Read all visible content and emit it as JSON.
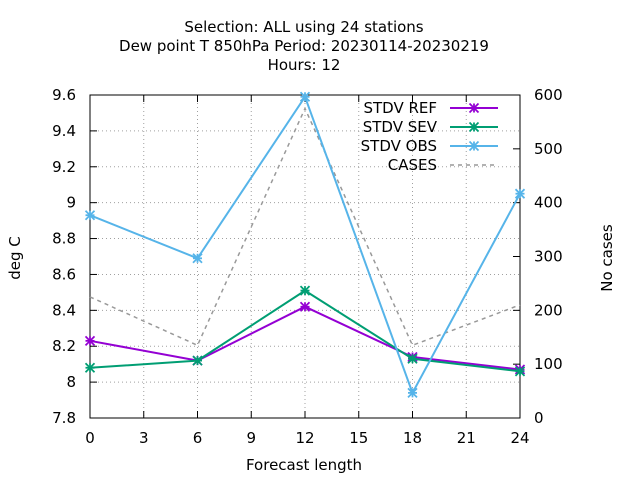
{
  "chart_data": {
    "type": "line",
    "title_lines": [
      "Selection: ALL using    24 stations",
      "Dew point T 850hPa   Period: 20230114-20230219",
      "Hours:  12"
    ],
    "xlabel": "Forecast length",
    "ylabel": "deg C",
    "y2label": "No cases",
    "x": [
      0,
      6,
      12,
      18,
      24
    ],
    "xticks": [
      "0",
      "3",
      "6",
      "9",
      "12",
      "15",
      "18",
      "21",
      "24"
    ],
    "xlim": [
      0,
      24
    ],
    "ylim": [
      7.8,
      9.6
    ],
    "yticks": [
      "7.8",
      "8",
      "8.2",
      "8.4",
      "8.6",
      "8.8",
      "9",
      "9.2",
      "9.4",
      "9.6"
    ],
    "y2lim": [
      0,
      600
    ],
    "y2ticks": [
      "0",
      "100",
      "200",
      "300",
      "400",
      "500",
      "600"
    ],
    "grid": true,
    "legend_position": "top-right",
    "series": [
      {
        "name": "STDV REF",
        "axis": "y",
        "color": "#9400d3",
        "dash": false,
        "marker": true,
        "values": [
          8.23,
          8.12,
          8.42,
          8.14,
          8.07
        ]
      },
      {
        "name": "STDV SEV",
        "axis": "y",
        "color": "#009e73",
        "dash": false,
        "marker": true,
        "values": [
          8.08,
          8.12,
          8.51,
          8.13,
          8.06
        ]
      },
      {
        "name": "STDV OBS",
        "axis": "y",
        "color": "#56b4e9",
        "dash": false,
        "marker": true,
        "values": [
          8.93,
          8.69,
          9.59,
          7.94,
          9.05
        ]
      },
      {
        "name": "CASES",
        "axis": "y2",
        "color": "#999999",
        "dash": true,
        "marker": false,
        "values": [
          225,
          135,
          575,
          135,
          210
        ]
      }
    ]
  }
}
